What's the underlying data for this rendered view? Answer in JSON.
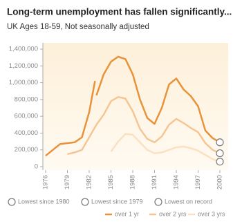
{
  "chart_data": {
    "type": "line",
    "title": "Long-term unemployment has fallen significantly...",
    "subtitle": "UK Ages 18-59, Not seasonally adjusted",
    "xlim": [
      1976,
      2000
    ],
    "xticks": [
      1976,
      1979,
      1982,
      1985,
      1988,
      1991,
      1994,
      1997,
      2000
    ],
    "ylim": [
      0,
      1400000
    ],
    "yticks": [
      0,
      {
        "value": 200000,
        "label": "200,000"
      },
      {
        "value": 400000,
        "label": "400,000"
      },
      {
        "value": 600000,
        "label": "600,000"
      },
      {
        "value": 800000,
        "label": "800,000"
      },
      {
        "value": 1000000,
        "label": "1,000,000"
      },
      {
        "value": 1200000,
        "label": "1,200,000"
      },
      {
        "value": 1400000,
        "label": "1,400,000"
      }
    ],
    "series": [
      {
        "name": "over 1 yr",
        "color": "#e8923a",
        "end_note": "Lowest since 1980",
        "x": [
          1976,
          1977,
          1978,
          1979,
          1980,
          1981,
          1982,
          1982.8,
          1982.9,
          1983,
          1984,
          1985,
          1986,
          1987,
          1988,
          1989,
          1990,
          1991,
          1992,
          1993,
          1994,
          1995,
          1996,
          1997,
          1998,
          1999,
          2000
        ],
        "values": [
          130000,
          200000,
          270000,
          280000,
          290000,
          350000,
          650000,
          1020000,
          null,
          850000,
          1100000,
          1250000,
          1310000,
          1280000,
          1100000,
          800000,
          580000,
          510000,
          700000,
          980000,
          1050000,
          920000,
          840000,
          720000,
          430000,
          340000,
          290000
        ]
      },
      {
        "name": "over 2 yrs",
        "color": "#f5c593",
        "end_note": "Lowest since 1979",
        "x": [
          1979,
          1980,
          1981,
          1982,
          1983,
          1984,
          1985,
          1986,
          1987,
          1988,
          1989,
          1990,
          1991,
          1992,
          1993,
          1994,
          1995,
          1996,
          1997,
          1998,
          1999,
          2000
        ],
        "values": [
          150000,
          170000,
          200000,
          350000,
          500000,
          620000,
          780000,
          830000,
          810000,
          660000,
          450000,
          330000,
          290000,
          360000,
          500000,
          570000,
          520000,
          460000,
          410000,
          280000,
          200000,
          160000
        ]
      },
      {
        "name": "over 3 yrs",
        "color": "#fbe0c2",
        "end_note": "Lowest on record",
        "x": [
          1985,
          1986,
          1987,
          1988,
          1989,
          1990,
          1991,
          1992,
          1993,
          1994,
          1995,
          1996,
          1997,
          1998,
          1999,
          2000
        ],
        "values": [
          180000,
          300000,
          390000,
          380000,
          290000,
          200000,
          160000,
          170000,
          200000,
          230000,
          240000,
          220000,
          190000,
          140000,
          90000,
          60000
        ]
      }
    ],
    "grid": false
  }
}
